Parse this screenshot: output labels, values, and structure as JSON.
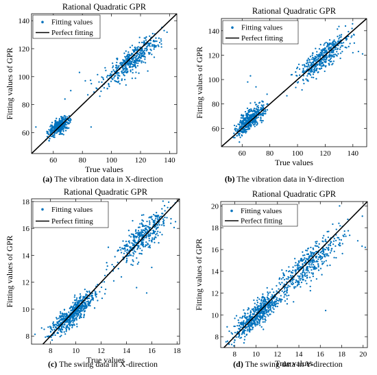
{
  "chart_data": [
    {
      "type": "scatter",
      "title": "Rational Quadratic GPR",
      "xlabel": "True values",
      "ylabel": "Fitting values of GPR",
      "xlim": [
        45,
        145
      ],
      "ylim": [
        45,
        145
      ],
      "xticks": [
        60,
        80,
        100,
        120,
        140
      ],
      "yticks": [
        60,
        80,
        100,
        120,
        140
      ],
      "legend_position": "top-left",
      "series": [
        {
          "name": "Fitting values",
          "style": "points",
          "color": "#0072BD",
          "clusters": [
            {
              "cx": 64,
              "cy": 64.5,
              "sx": 3.5,
              "sy": 3.0,
              "rho": 0.6,
              "n": 420
            },
            {
              "cx": 114,
              "cy": 112,
              "sx": 9.5,
              "sy": 8.5,
              "rho": 0.85,
              "n": 420
            }
          ],
          "points": [
            [
              68,
              84
            ],
            [
              72,
              90
            ],
            [
              78,
              103
            ],
            [
              82,
              97
            ],
            [
              88,
              89
            ],
            [
              92,
              86
            ],
            [
              95,
              92
            ],
            [
              100,
              100
            ],
            [
              98,
              95
            ],
            [
              86,
              64
            ],
            [
              110,
              94
            ],
            [
              130,
              122
            ],
            [
              56,
              57
            ],
            [
              125,
              104
            ],
            [
              48,
              64
            ]
          ]
        },
        {
          "name": "Perfect fitting",
          "style": "line",
          "color": "#000000",
          "x": [
            45,
            145
          ],
          "y": [
            45,
            145
          ]
        }
      ],
      "caption": {
        "label": "(a)",
        "text": " The vibration data in X-direction"
      }
    },
    {
      "type": "scatter",
      "title": "Rational Quadratic GPR",
      "xlabel": "True values",
      "ylabel": "Fitting values of GPR",
      "xlim": [
        45,
        150
      ],
      "ylim": [
        45,
        150
      ],
      "xticks": [
        60,
        80,
        100,
        120,
        140
      ],
      "yticks": [
        60,
        80,
        100,
        120,
        140
      ],
      "legend_position": "top-left",
      "series": [
        {
          "name": "Fitting values",
          "style": "points",
          "color": "#0072BD",
          "clusters": [
            {
              "cx": 66,
              "cy": 67,
              "sx": 5.0,
              "sy": 6.0,
              "rho": 0.7,
              "n": 420
            },
            {
              "cx": 118,
              "cy": 118,
              "sx": 9.0,
              "sy": 9.0,
              "rho": 0.85,
              "n": 420
            }
          ],
          "points": [
            [
              66,
              103
            ],
            [
              64,
              98
            ],
            [
              70,
              94
            ],
            [
              78,
              88
            ],
            [
              100,
              110
            ],
            [
              96,
              104
            ],
            [
              104,
              100
            ],
            [
              90,
              90
            ],
            [
              140,
              122
            ],
            [
              144,
              123
            ],
            [
              147,
              121
            ],
            [
              137,
              127
            ],
            [
              75,
              82
            ]
          ]
        },
        {
          "name": "Perfect fitting",
          "style": "line",
          "color": "#000000",
          "x": [
            45,
            150
          ],
          "y": [
            45,
            150
          ]
        }
      ],
      "caption": {
        "label": "(b)",
        "text": " The vibration data in Y-direction"
      }
    },
    {
      "type": "scatter",
      "title": "Rational Quadratic GPR",
      "xlabel": "True values",
      "ylabel": "Fitting values of GPR",
      "xlim": [
        6.5,
        18.2
      ],
      "ylim": [
        7.4,
        18.2
      ],
      "xticks": [
        8,
        10,
        12,
        14,
        16,
        18
      ],
      "yticks": [
        8,
        10,
        12,
        14,
        16,
        18
      ],
      "legend_position": "top-left",
      "series": [
        {
          "name": "Fitting values",
          "style": "points",
          "color": "#0072BD",
          "clusters": [
            {
              "cx": 9.7,
              "cy": 9.6,
              "sx": 0.9,
              "sy": 0.8,
              "rho": 0.85,
              "n": 550
            },
            {
              "cx": 15.3,
              "cy": 15.4,
              "sx": 1.1,
              "sy": 1.0,
              "rho": 0.8,
              "n": 380
            }
          ],
          "points": [
            [
              12.5,
              13.2
            ],
            [
              12.3,
              12.5
            ],
            [
              13,
              12.1
            ],
            [
              13.6,
              12.4
            ],
            [
              14.8,
              11.6
            ],
            [
              15.6,
              11.2
            ],
            [
              16,
              13.1
            ],
            [
              11.6,
              11.7
            ],
            [
              8,
              8.6
            ],
            [
              7.5,
              8.5
            ],
            [
              7.3,
              8.6
            ],
            [
              17.2,
              16.8
            ]
          ]
        },
        {
          "name": "Perfect fitting",
          "style": "line",
          "color": "#000000",
          "x": [
            6.5,
            18.2
          ],
          "y": [
            6.5,
            18.2
          ]
        }
      ],
      "caption": {
        "label": "(c)",
        "text": " The swing data in X-direction"
      }
    },
    {
      "type": "scatter",
      "title": "Rational Quadratic GPR",
      "xlabel": "True values",
      "ylabel": "Fitting values of GPR",
      "xlim": [
        6.7,
        20.4
      ],
      "ylim": [
        7.0,
        20.4
      ],
      "xticks": [
        8,
        10,
        12,
        14,
        16,
        18,
        20
      ],
      "yticks": [
        8,
        10,
        12,
        14,
        16,
        18,
        20
      ],
      "legend_position": "top-left",
      "series": [
        {
          "name": "Fitting values",
          "style": "points",
          "color": "#0072BD",
          "clusters": [
            {
              "cx": 10.2,
              "cy": 10.1,
              "sx": 1.1,
              "sy": 1.1,
              "rho": 0.85,
              "n": 560
            },
            {
              "cx": 15.0,
              "cy": 14.7,
              "sx": 1.6,
              "sy": 1.5,
              "rho": 0.85,
              "n": 420
            }
          ],
          "points": [
            [
              7.5,
              8.5
            ],
            [
              7.3,
              8.9
            ],
            [
              8,
              7.7
            ],
            [
              16.5,
              10.4
            ],
            [
              17.8,
              20
            ],
            [
              19.5,
              16.8
            ],
            [
              19.9,
              16.3
            ],
            [
              20.2,
              16.2
            ],
            [
              18.2,
              17.2
            ],
            [
              13.5,
              11.2
            ]
          ]
        },
        {
          "name": "Perfect fitting",
          "style": "line",
          "color": "#000000",
          "x": [
            6.7,
            20.4
          ],
          "y": [
            6.7,
            20.4
          ]
        }
      ],
      "caption": {
        "label": "(d)",
        "text": " The swing data in Y-direction"
      }
    }
  ]
}
